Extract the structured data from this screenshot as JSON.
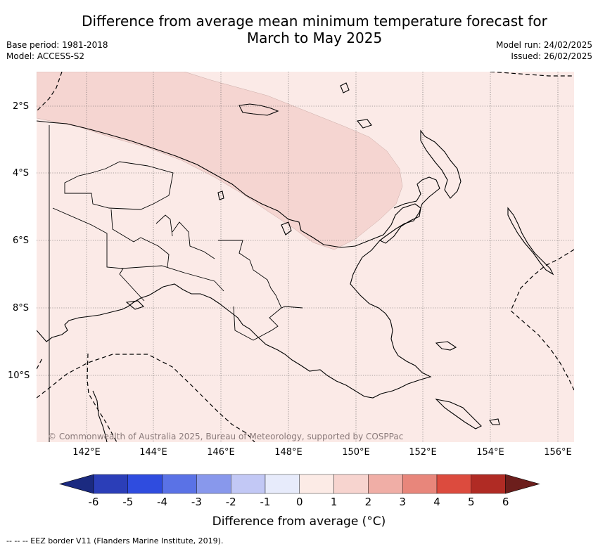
{
  "header": {
    "title_line1": "Difference from average mean minimum temperature forecast for",
    "title_line2": "March to May 2025",
    "base_period": "Base period: 1981-2018",
    "model": "Model: ACCESS-S2",
    "model_run": "Model run: 24/02/2025",
    "issued": "Issued: 26/02/2025"
  },
  "map": {
    "lat_labels": [
      "2°S",
      "4°S",
      "6°S",
      "8°S",
      "10°S"
    ],
    "lon_labels": [
      "142°E",
      "144°E",
      "146°E",
      "148°E",
      "150°E",
      "152°E",
      "154°E",
      "156°E"
    ],
    "copyright": "© Commonwealth of Australia 2025, Bureau of Meteorology, supported by COSPPac",
    "colors": {
      "background_anomaly": "#fbeae7",
      "higher_anomaly": "#f5d5d1",
      "coastline": "#000000",
      "grid": "#555555"
    }
  },
  "colorbar": {
    "ticks": [
      "-6",
      "-5",
      "-4",
      "-3",
      "-2",
      "-1",
      "0",
      "1",
      "2",
      "3",
      "4",
      "5",
      "6"
    ],
    "colors": [
      "#1b2a80",
      "#2b3eb8",
      "#2f4cdf",
      "#5a72e6",
      "#8898ec",
      "#c2c8f5",
      "#e7ebfb",
      "#fcebe6",
      "#f7d4cf",
      "#f0aea6",
      "#e8867b",
      "#dc4b3e",
      "#b02b24",
      "#6c1e1c"
    ],
    "label": "Difference from average (°C)"
  },
  "footer": {
    "eez_note": "--  --  -- EEZ border V11 (Flanders Marine Institute, 2019)."
  }
}
